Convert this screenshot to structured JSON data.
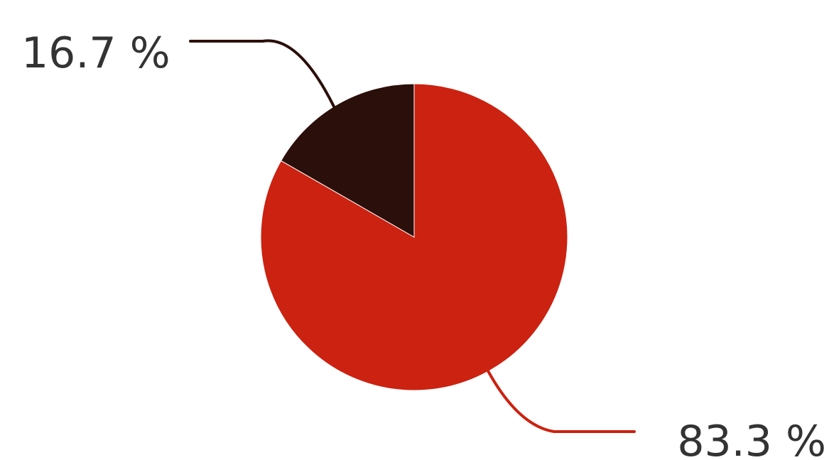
{
  "chart_data": {
    "type": "pie",
    "slices": [
      {
        "value": 83.3,
        "label": "83.3 %",
        "color": "#cc2211"
      },
      {
        "value": 16.7,
        "label": "16.7 %",
        "color": "#2b0f0a"
      }
    ]
  }
}
